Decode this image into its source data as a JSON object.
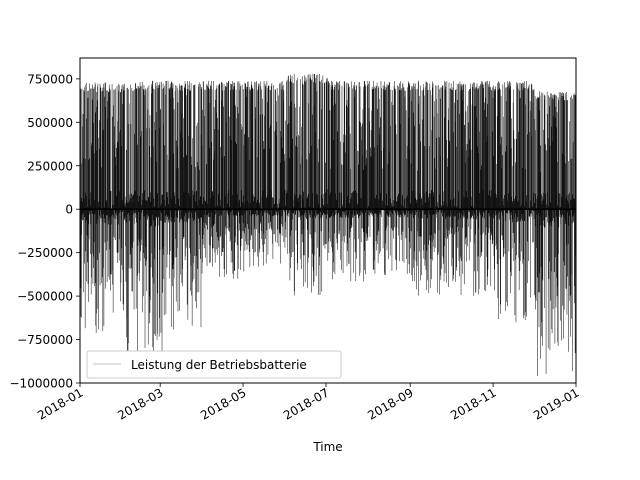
{
  "chart_data": {
    "type": "line",
    "title": "",
    "xlabel": "Time",
    "ylabel": "",
    "x_range": [
      "2018-01-01",
      "2019-01-01"
    ],
    "ylim": [
      -1000000,
      870000
    ],
    "x_ticks": [
      {
        "date": "2018-01-01",
        "label": "2018-01"
      },
      {
        "date": "2018-03-01",
        "label": "2018-03"
      },
      {
        "date": "2018-05-01",
        "label": "2018-05"
      },
      {
        "date": "2018-07-01",
        "label": "2018-07"
      },
      {
        "date": "2018-09-01",
        "label": "2018-09"
      },
      {
        "date": "2018-11-01",
        "label": "2018-11"
      },
      {
        "date": "2019-01-01",
        "label": "2019-01"
      }
    ],
    "y_ticks": [
      {
        "value": 750000,
        "label": "750000"
      },
      {
        "value": 500000,
        "label": "500000"
      },
      {
        "value": 250000,
        "label": "250000"
      },
      {
        "value": 0,
        "label": "0"
      },
      {
        "value": -250000,
        "label": "−250000"
      },
      {
        "value": -500000,
        "label": "−500000"
      },
      {
        "value": -750000,
        "label": "−750000"
      },
      {
        "value": -1000000,
        "label": "−1000000"
      }
    ],
    "legend": {
      "position": "lower-left",
      "entries": [
        "Leistung der Betriebsbatterie"
      ]
    },
    "grid": false,
    "series": [
      {
        "name": "Leistung der Betriebsbatterie",
        "color": "#000000",
        "monthly_summary": [
          {
            "month": "2018-01",
            "max": 730000,
            "min": -730000
          },
          {
            "month": "2018-02",
            "max": 740000,
            "min": -860000
          },
          {
            "month": "2018-03",
            "max": 740000,
            "min": -700000
          },
          {
            "month": "2018-04",
            "max": 740000,
            "min": -400000
          },
          {
            "month": "2018-05",
            "max": 740000,
            "min": -350000
          },
          {
            "month": "2018-06",
            "max": 780000,
            "min": -500000
          },
          {
            "month": "2018-07",
            "max": 740000,
            "min": -420000
          },
          {
            "month": "2018-08",
            "max": 740000,
            "min": -400000
          },
          {
            "month": "2018-09",
            "max": 740000,
            "min": -500000
          },
          {
            "month": "2018-10",
            "max": 740000,
            "min": -500000
          },
          {
            "month": "2018-11",
            "max": 740000,
            "min": -650000
          },
          {
            "month": "2018-12",
            "max": 680000,
            "min": -970000
          }
        ]
      }
    ]
  }
}
